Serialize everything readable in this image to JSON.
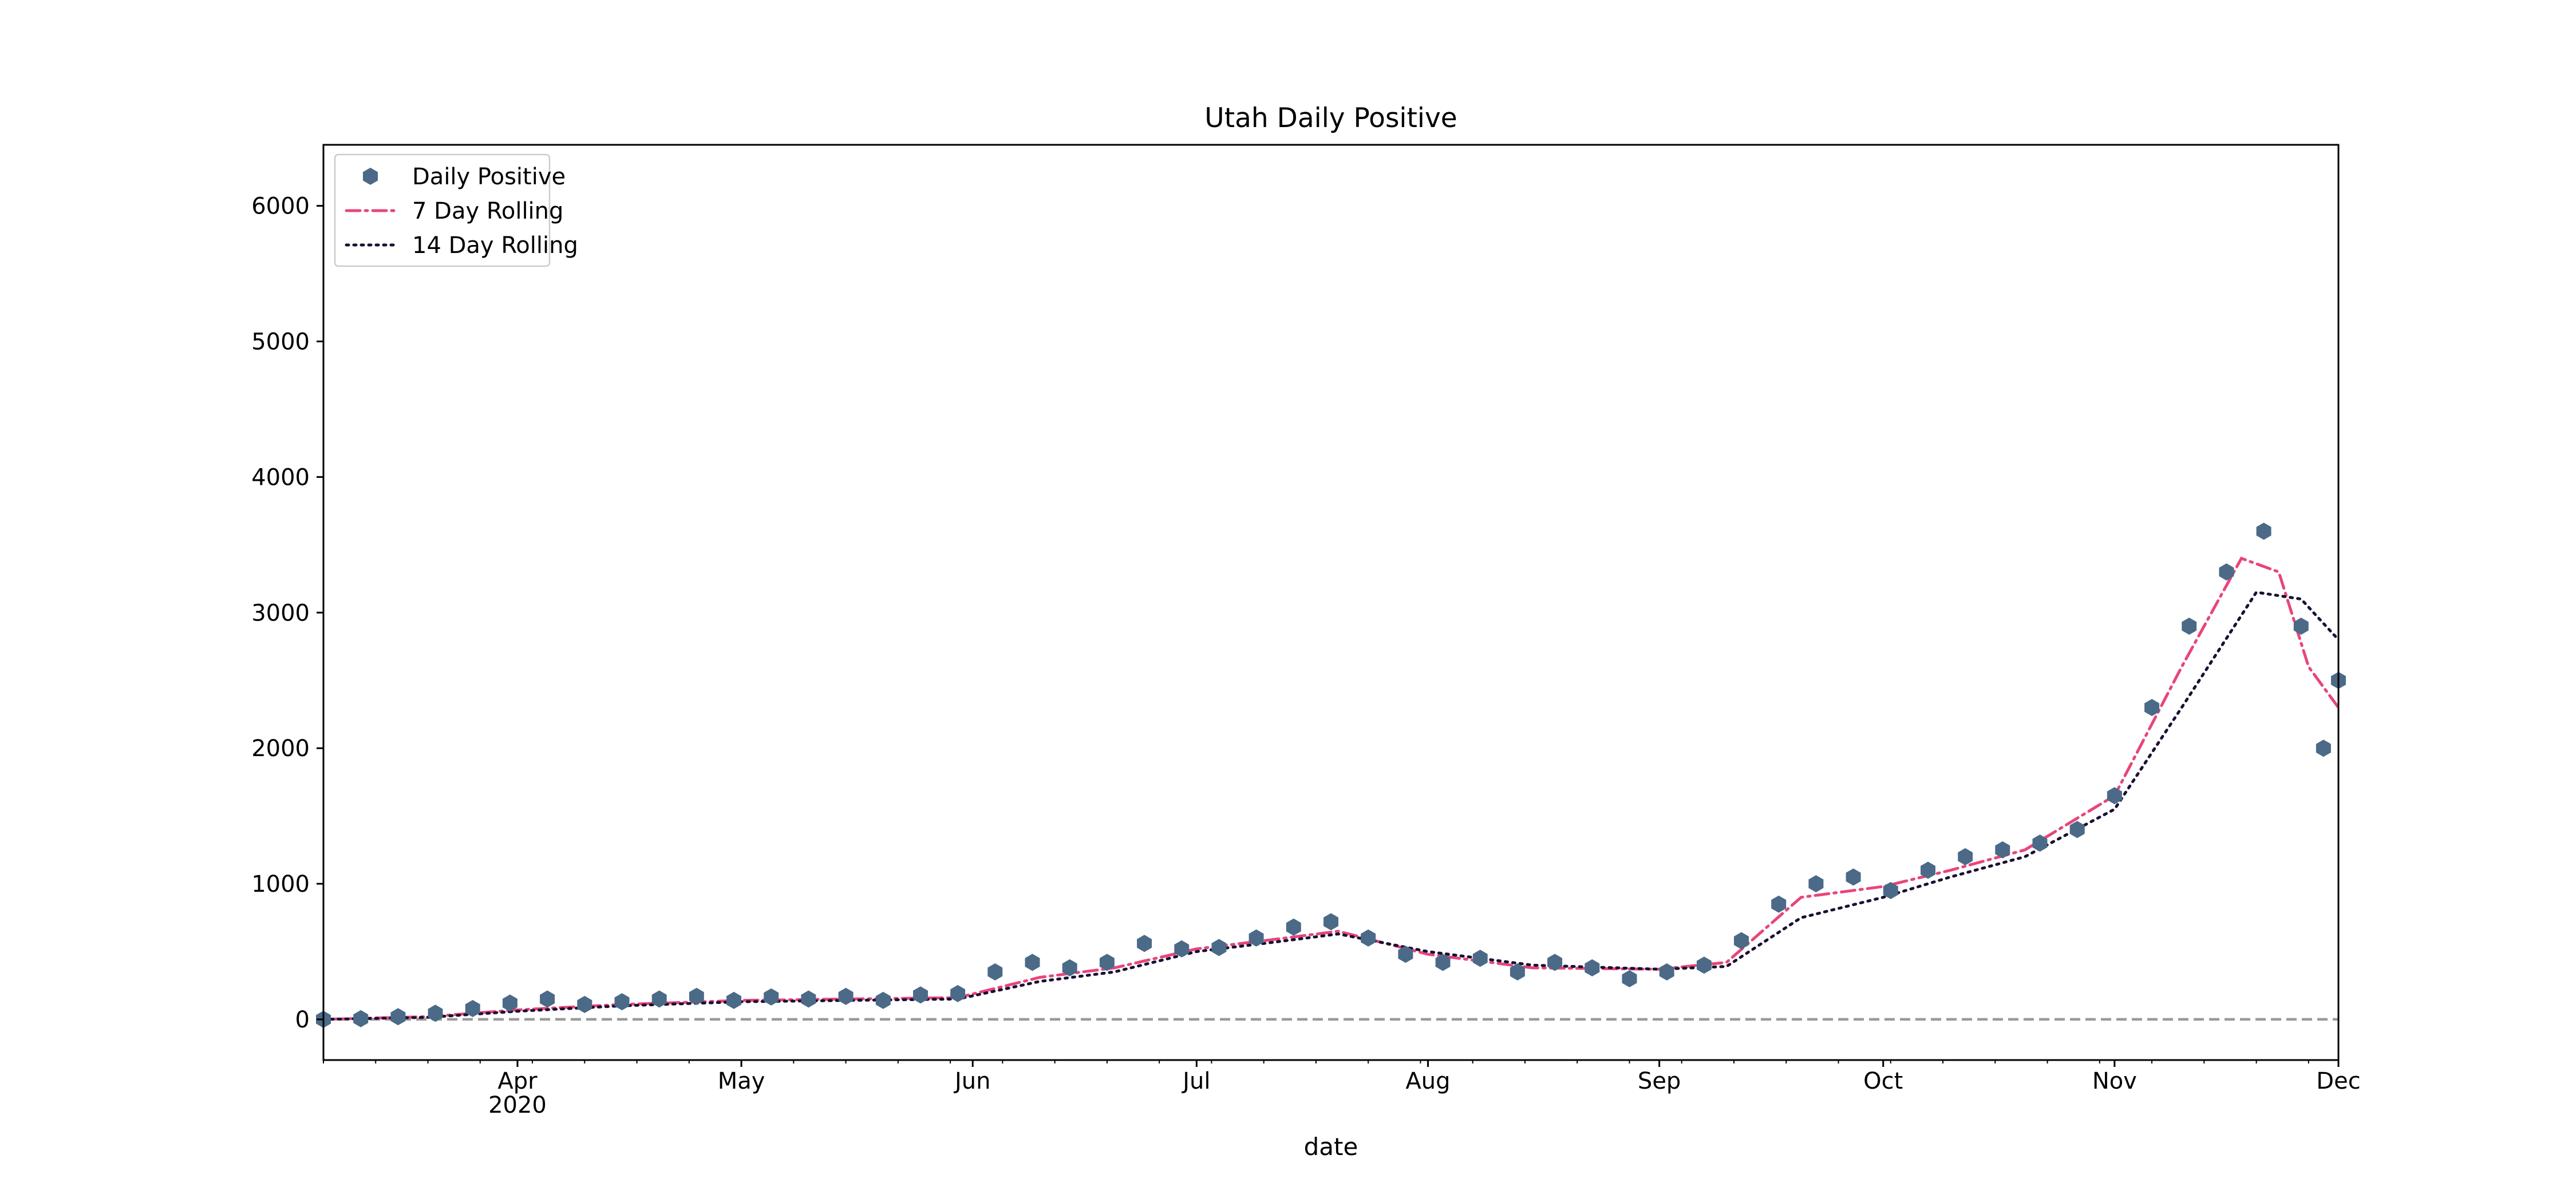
{
  "chart_data": {
    "type": "scatter",
    "title": "Utah Daily Positive",
    "xlabel": "date",
    "ylabel": "",
    "x_range": [
      "2020-03-06",
      "2020-12-01"
    ],
    "ylim": [
      -300,
      6450
    ],
    "y_ticks": [
      0,
      1000,
      2000,
      3000,
      4000,
      5000,
      6000
    ],
    "x_ticks": [
      {
        "date": "2020-04-01",
        "label": "Apr",
        "sublabel": "2020"
      },
      {
        "date": "2020-05-01",
        "label": "May",
        "sublabel": ""
      },
      {
        "date": "2020-06-01",
        "label": "Jun",
        "sublabel": ""
      },
      {
        "date": "2020-07-01",
        "label": "Jul",
        "sublabel": ""
      },
      {
        "date": "2020-08-01",
        "label": "Aug",
        "sublabel": ""
      },
      {
        "date": "2020-09-01",
        "label": "Sep",
        "sublabel": ""
      },
      {
        "date": "2020-10-01",
        "label": "Oct",
        "sublabel": ""
      },
      {
        "date": "2020-11-01",
        "label": "Nov",
        "sublabel": ""
      },
      {
        "date": "2020-12-01",
        "label": "Dec",
        "sublabel": ""
      }
    ],
    "grid": false,
    "legend_position": "top-left",
    "reference_line": {
      "y": 0,
      "color": "#999999",
      "style": "dashed"
    },
    "series": [
      {
        "name": "Daily Positive",
        "kind": "scatter",
        "marker": "hexagon",
        "color": "#4b6a88",
        "x": [
          "2020-03-06",
          "2020-03-11",
          "2020-03-16",
          "2020-03-21",
          "2020-03-26",
          "2020-03-31",
          "2020-04-05",
          "2020-04-10",
          "2020-04-15",
          "2020-04-20",
          "2020-04-25",
          "2020-04-30",
          "2020-05-05",
          "2020-05-10",
          "2020-05-15",
          "2020-05-20",
          "2020-05-25",
          "2020-05-30",
          "2020-06-04",
          "2020-06-09",
          "2020-06-14",
          "2020-06-19",
          "2020-06-24",
          "2020-06-29",
          "2020-07-04",
          "2020-07-09",
          "2020-07-14",
          "2020-07-19",
          "2020-07-24",
          "2020-07-29",
          "2020-08-03",
          "2020-08-08",
          "2020-08-13",
          "2020-08-18",
          "2020-08-23",
          "2020-08-28",
          "2020-09-02",
          "2020-09-07",
          "2020-09-12",
          "2020-09-17",
          "2020-09-22",
          "2020-09-27",
          "2020-10-02",
          "2020-10-07",
          "2020-10-12",
          "2020-10-17",
          "2020-10-22",
          "2020-10-27",
          "2020-11-01",
          "2020-11-06",
          "2020-11-11",
          "2020-11-16",
          "2020-11-21",
          "2020-11-26",
          "2020-11-29",
          "2020-12-01"
        ],
        "y": [
          0,
          5,
          20,
          45,
          80,
          120,
          150,
          110,
          130,
          150,
          170,
          140,
          165,
          150,
          170,
          140,
          180,
          190,
          350,
          420,
          380,
          420,
          560,
          520,
          530,
          600,
          680,
          720,
          600,
          480,
          420,
          450,
          350,
          420,
          380,
          300,
          350,
          400,
          580,
          850,
          1000,
          1050,
          950,
          1100,
          1200,
          1250,
          1300,
          1400,
          1650,
          2300,
          2900,
          3300,
          3600,
          2900,
          2000,
          2500
        ]
      },
      {
        "name": "7 Day Rolling",
        "kind": "line",
        "style": "dashdot",
        "color": "#e8457a",
        "x": [
          "2020-03-06",
          "2020-03-20",
          "2020-04-01",
          "2020-04-15",
          "2020-05-01",
          "2020-05-15",
          "2020-05-30",
          "2020-06-10",
          "2020-06-20",
          "2020-07-01",
          "2020-07-10",
          "2020-07-20",
          "2020-08-01",
          "2020-08-15",
          "2020-09-01",
          "2020-09-10",
          "2020-09-20",
          "2020-10-01",
          "2020-10-10",
          "2020-10-20",
          "2020-11-01",
          "2020-11-10",
          "2020-11-18",
          "2020-11-23",
          "2020-11-27",
          "2020-12-01"
        ],
        "y": [
          0,
          20,
          70,
          110,
          140,
          150,
          160,
          310,
          380,
          520,
          580,
          650,
          480,
          380,
          370,
          420,
          900,
          980,
          1100,
          1250,
          1650,
          2600,
          3400,
          3300,
          2600,
          2300
        ]
      },
      {
        "name": "14 Day Rolling",
        "kind": "line",
        "style": "dotted",
        "color": "#1a1033",
        "x": [
          "2020-03-06",
          "2020-03-20",
          "2020-04-01",
          "2020-04-15",
          "2020-05-01",
          "2020-05-15",
          "2020-05-30",
          "2020-06-10",
          "2020-06-20",
          "2020-07-01",
          "2020-07-10",
          "2020-07-20",
          "2020-08-01",
          "2020-08-15",
          "2020-09-01",
          "2020-09-10",
          "2020-09-20",
          "2020-10-01",
          "2020-10-10",
          "2020-10-20",
          "2020-11-01",
          "2020-11-10",
          "2020-11-20",
          "2020-11-26",
          "2020-12-01"
        ],
        "y": [
          0,
          15,
          60,
          100,
          130,
          140,
          150,
          280,
          350,
          500,
          560,
          630,
          500,
          400,
          370,
          390,
          750,
          900,
          1050,
          1200,
          1550,
          2300,
          3150,
          3100,
          2800
        ]
      }
    ]
  }
}
